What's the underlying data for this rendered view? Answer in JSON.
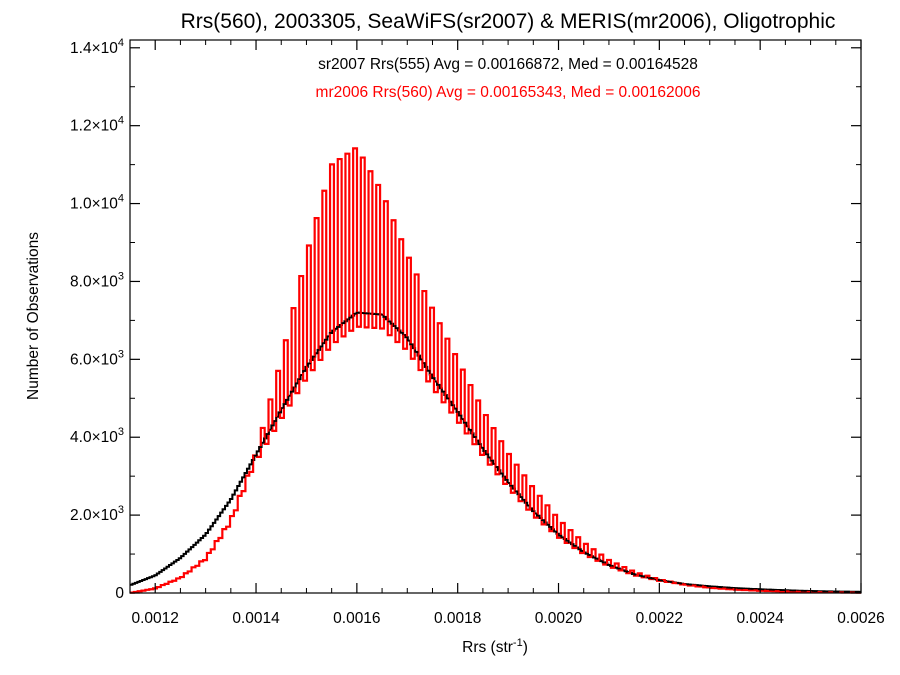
{
  "chart_data": {
    "type": "histogram",
    "title": "Rrs(560), 2003305, SeaWiFS(sr2007) & MERIS(mr2006), Oligotrophic",
    "xlabel": {
      "base": "Rrs (str",
      "sup": "-1",
      "end": ")"
    },
    "ylabel": "Number of Observations",
    "xlim": [
      0.00115,
      0.0026
    ],
    "ylim": [
      0,
      14200
    ],
    "xticks": [
      {
        "value": 0.0012,
        "label": "0.0012"
      },
      {
        "value": 0.0014,
        "label": "0.0014"
      },
      {
        "value": 0.0016,
        "label": "0.0016"
      },
      {
        "value": 0.0018,
        "label": "0.0018"
      },
      {
        "value": 0.002,
        "label": "0.0020"
      },
      {
        "value": 0.0022,
        "label": "0.0022"
      },
      {
        "value": 0.0024,
        "label": "0.0024"
      },
      {
        "value": 0.0026,
        "label": "0.0026"
      }
    ],
    "yticks": [
      {
        "value": 0,
        "mant": "0",
        "exp": ""
      },
      {
        "value": 2000,
        "mant": "2.0×10",
        "exp": "3"
      },
      {
        "value": 4000,
        "mant": "4.0×10",
        "exp": "3"
      },
      {
        "value": 6000,
        "mant": "6.0×10",
        "exp": "3"
      },
      {
        "value": 8000,
        "mant": "8.0×10",
        "exp": "3"
      },
      {
        "value": 10000,
        "mant": "1.0×10",
        "exp": "4"
      },
      {
        "value": 12000,
        "mant": "1.2×10",
        "exp": "4"
      },
      {
        "value": 14000,
        "mant": "1.4×10",
        "exp": "4"
      }
    ],
    "annotations": [
      {
        "text": "sr2007 Rrs(555) Avg = 0.00166872, Med = 0.00164528",
        "color": "#000000"
      },
      {
        "text": "mr2006 Rrs(560) Avg = 0.00165343, Med = 0.00162006",
        "color": "#ff0000"
      }
    ],
    "series": [
      {
        "name": "sr2007",
        "color": "#000000",
        "curve": [
          [
            0.00115,
            200
          ],
          [
            0.0012,
            450
          ],
          [
            0.00125,
            900
          ],
          [
            0.0013,
            1500
          ],
          [
            0.00135,
            2400
          ],
          [
            0.0014,
            3550
          ],
          [
            0.00145,
            4700
          ],
          [
            0.0015,
            5800
          ],
          [
            0.00155,
            6700
          ],
          [
            0.0016,
            7200
          ],
          [
            0.00165,
            7150
          ],
          [
            0.0017,
            6550
          ],
          [
            0.00175,
            5550
          ],
          [
            0.0018,
            4650
          ],
          [
            0.00185,
            3700
          ],
          [
            0.0019,
            2850
          ],
          [
            0.00195,
            2100
          ],
          [
            0.002,
            1500
          ],
          [
            0.00205,
            1050
          ],
          [
            0.0021,
            720
          ],
          [
            0.00215,
            480
          ],
          [
            0.0022,
            330
          ],
          [
            0.00225,
            230
          ],
          [
            0.0023,
            170
          ],
          [
            0.00235,
            125
          ],
          [
            0.0024,
            95
          ],
          [
            0.00245,
            70
          ],
          [
            0.0025,
            50
          ],
          [
            0.00255,
            38
          ],
          [
            0.0026,
            30
          ]
        ]
      },
      {
        "name": "mr2006",
        "color": "#ff0000",
        "curve": [
          [
            0.00115,
            0
          ],
          [
            0.0012,
            120
          ],
          [
            0.00125,
            400
          ],
          [
            0.0013,
            900
          ],
          [
            0.00135,
            1900
          ],
          [
            0.0014,
            3600
          ],
          [
            0.00145,
            6000
          ],
          [
            0.0015,
            8700
          ],
          [
            0.00155,
            11000
          ],
          [
            0.0016,
            11450
          ],
          [
            0.00165,
            10300
          ],
          [
            0.0017,
            8700
          ],
          [
            0.00175,
            7300
          ],
          [
            0.0018,
            6000
          ],
          [
            0.00185,
            4700
          ],
          [
            0.0019,
            3600
          ],
          [
            0.00195,
            2700
          ],
          [
            0.002,
            1900
          ],
          [
            0.00205,
            1300
          ],
          [
            0.0021,
            850
          ],
          [
            0.00215,
            550
          ],
          [
            0.0022,
            350
          ],
          [
            0.00225,
            220
          ],
          [
            0.0023,
            140
          ],
          [
            0.00235,
            90
          ],
          [
            0.0024,
            60
          ],
          [
            0.00245,
            40
          ],
          [
            0.0025,
            25
          ],
          [
            0.00255,
            15
          ],
          [
            0.0026,
            10
          ]
        ],
        "oscillation_trough_fraction": 0.5,
        "bin_pairs": 95
      }
    ],
    "grid": false,
    "legend": "none"
  }
}
